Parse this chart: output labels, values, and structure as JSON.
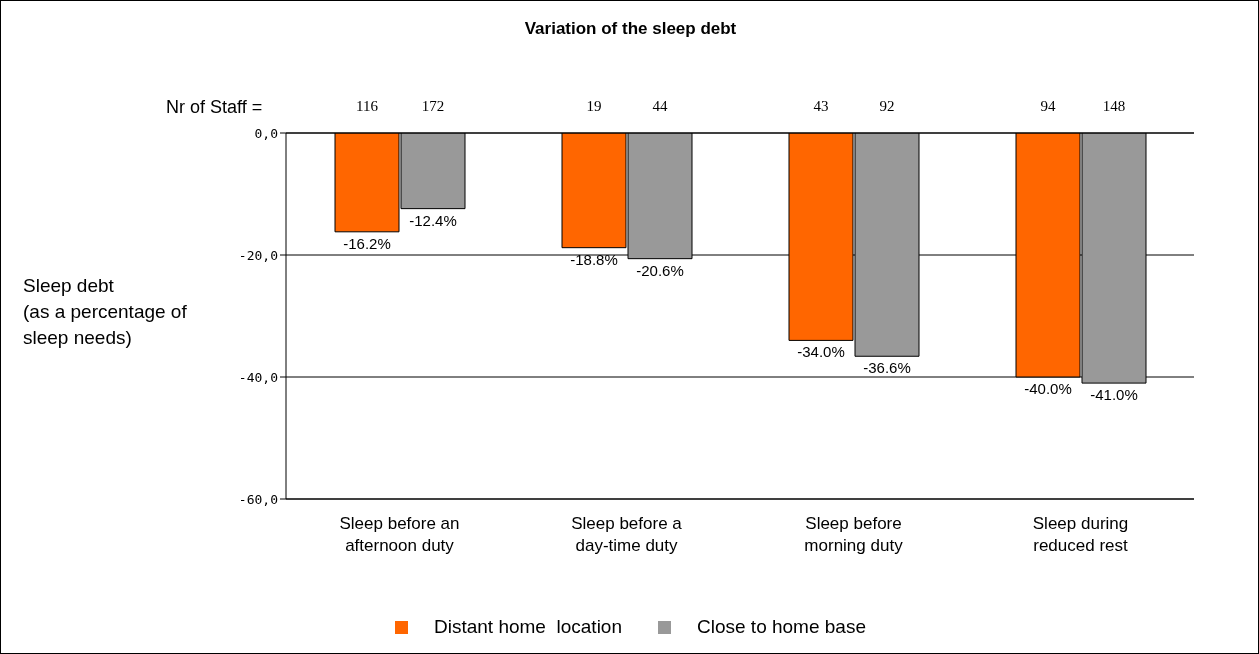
{
  "chart_data": {
    "type": "bar",
    "title": "Variation of the sleep debt",
    "ylabel": "Sleep debt\n(as a percentage of\nsleep needs)",
    "categories": [
      "Sleep before an\nafternoon duty",
      "Sleep before a\nday-time duty",
      "Sleep before\nmorning duty",
      "Sleep during\nreduced rest"
    ],
    "series": [
      {
        "name": "Distant home  location",
        "color": "#ff6600",
        "values": [
          -16.2,
          -18.8,
          -34.0,
          -40.0
        ],
        "value_labels": [
          "-16.2%",
          "-18.8%",
          "-34.0%",
          "-40.0%"
        ]
      },
      {
        "name": "Close to home base",
        "color": "#999999",
        "values": [
          -12.4,
          -20.6,
          -36.6,
          -41.0
        ],
        "value_labels": [
          "-12.4%",
          "-20.6%",
          "-36.6%",
          "-41.0%"
        ]
      }
    ],
    "ylim": [
      -60,
      0
    ],
    "yticks": [
      {
        "value": 0,
        "label": "0,0"
      },
      {
        "value": -20,
        "label": "-20,0"
      },
      {
        "value": -40,
        "label": "-40,0"
      },
      {
        "value": -60,
        "label": "-60,0"
      }
    ],
    "grid": "y",
    "legend": "bottom",
    "annotations": [
      "Nr of Staff =",
      "116",
      "172",
      "19",
      "44",
      "43",
      "92",
      "94",
      "148"
    ]
  }
}
